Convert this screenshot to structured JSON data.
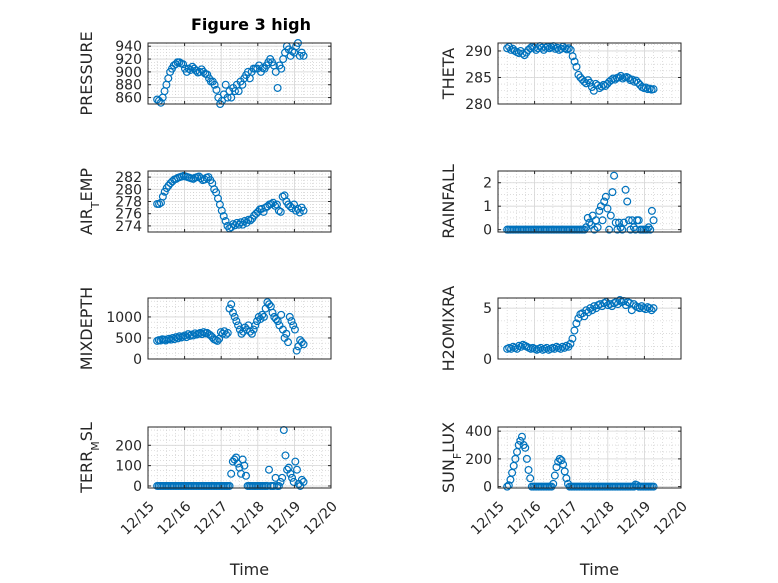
{
  "figure_title": "Figure 3 high",
  "marker_color": "#0072BD",
  "chart_data": [
    {
      "type": "scatter",
      "title": "Figure 3 high",
      "ylabel": "PRESSURE",
      "xlim": [
        "12/15",
        "12/20"
      ],
      "ylim": [
        850,
        945
      ],
      "yticks": [
        860,
        880,
        900,
        920,
        940
      ],
      "x_range": [
        "12/15 06:00",
        "12/19 06:00"
      ],
      "y": [
        857,
        855,
        852,
        860,
        870,
        880,
        890,
        900,
        905,
        910,
        912,
        915,
        915,
        913,
        912,
        905,
        900,
        905,
        903,
        908,
        905,
        902,
        899,
        900,
        904,
        900,
        897,
        896,
        890,
        885,
        885,
        880,
        872,
        860,
        850,
        855,
        865,
        880,
        860,
        870,
        860,
        875,
        870,
        880,
        870,
        885,
        880,
        890,
        895,
        900,
        890,
        900,
        905,
        905,
        905,
        910,
        900,
        906,
        905,
        910,
        915,
        920,
        915,
        910,
        900,
        875,
        910,
        905,
        920,
        930,
        940,
        935,
        925,
        932,
        930,
        940,
        945,
        925,
        930,
        925
      ]
    },
    {
      "type": "scatter",
      "ylabel": "THETA",
      "xlim": [
        "12/15",
        "12/20"
      ],
      "ylim": [
        280,
        291.5
      ],
      "yticks": [
        280,
        285,
        290
      ],
      "x_range": [
        "12/15 06:00",
        "12/19 06:00"
      ],
      "y": [
        290.5,
        290.8,
        290.2,
        290.4,
        290,
        289.8,
        289.6,
        290,
        289.5,
        289.2,
        289.7,
        290.2,
        290.5,
        290.8,
        290.6,
        290.2,
        290.5,
        290.9,
        290.6,
        290.2,
        290.6,
        290.8,
        290.5,
        290.7,
        290.9,
        290.4,
        290.6,
        290.2,
        290.4,
        290.8,
        290.5,
        290.3,
        290.5,
        290.2,
        289,
        288,
        287,
        285.5,
        285,
        284.6,
        284.2,
        283.9,
        284.5,
        284,
        283.2,
        282.5,
        283.8,
        283.5,
        283,
        283.3,
        283.6,
        283.4,
        283.8,
        284.2,
        284.5,
        284.8,
        284.6,
        284.9,
        285,
        285.3,
        284.8,
        285,
        285.1,
        284.9,
        284.5,
        284.6,
        284.2,
        284.4,
        284,
        283.6,
        283.2,
        283,
        283.1,
        282.8,
        282.9,
        282.7,
        282.8
      ]
    },
    {
      "type": "scatter",
      "ylabel": "AIR_TEMP",
      "ylabel_main": "AIR",
      "ylabel_sub": "T",
      "ylabel_rest": "EMP",
      "xlim": [
        "12/15",
        "12/20"
      ],
      "ylim": [
        273,
        283
      ],
      "yticks": [
        274,
        276,
        278,
        280,
        282
      ],
      "x_range": [
        "12/15 06:00",
        "12/19 06:00"
      ],
      "y": [
        277.6,
        277.6,
        277.8,
        278.8,
        279.6,
        280.2,
        280.6,
        281,
        281.3,
        281.6,
        281.7,
        281.9,
        282,
        282.1,
        282.2,
        282.1,
        282,
        281.9,
        281.8,
        281.7,
        281.9,
        282,
        282.1,
        281.8,
        281.5,
        281.6,
        281.9,
        282,
        281.5,
        281,
        280,
        279.5,
        278.5,
        277.5,
        276.5,
        275.6,
        274.8,
        274,
        273.6,
        273.8,
        274.3,
        274.1,
        274.5,
        274.2,
        274.6,
        274.2,
        274.8,
        274.5,
        275,
        274.9,
        275.2,
        275.7,
        276,
        276.3,
        276.7,
        276.8,
        276.3,
        277,
        277.2,
        277.5,
        277.6,
        277.8,
        277.3,
        277.5,
        276.5,
        276.3,
        278.8,
        279,
        278,
        277.5,
        277.2,
        276.9,
        277.5,
        276.5,
        276.8,
        276.2,
        277,
        276.5
      ]
    },
    {
      "type": "scatter",
      "ylabel": "RAINFALL",
      "xlim": [
        "12/15",
        "12/20"
      ],
      "ylim": [
        -0.1,
        2.5
      ],
      "yticks": [
        0,
        1,
        2
      ],
      "x_range": [
        "12/15 06:00",
        "12/19 06:00"
      ],
      "y": [
        0,
        0,
        0,
        0,
        0,
        0,
        0,
        0,
        0,
        0,
        0,
        0,
        0,
        0,
        0,
        0,
        0,
        0,
        0,
        0,
        0,
        0,
        0,
        0,
        0,
        0,
        0,
        0,
        0,
        0,
        0,
        0,
        0,
        0,
        0,
        0,
        0,
        0,
        0,
        0,
        0,
        0,
        0,
        0,
        0,
        0,
        0,
        0,
        0.1,
        0.5,
        0.3,
        0.2,
        0.6,
        0,
        0.4,
        0.1,
        0.8,
        1.0,
        0.4,
        1.2,
        1.4,
        0.9,
        0,
        0.6,
        1.6,
        2.3,
        0.3,
        0,
        0.3,
        0.1,
        0,
        0.3,
        1.7,
        1.2,
        0.4,
        0,
        0.4,
        0.1,
        0,
        0.4,
        0.4,
        0,
        0,
        0,
        0,
        0,
        0.1,
        0,
        0.8,
        0.4
      ]
    },
    {
      "type": "scatter",
      "ylabel": "MIXDEPTH",
      "xlim": [
        "12/15",
        "12/20"
      ],
      "ylim": [
        0,
        1450
      ],
      "yticks": [
        0,
        500,
        1000
      ],
      "x_range": [
        "12/15 06:00",
        "12/19 06:00"
      ],
      "y": [
        430,
        450,
        440,
        470,
        460,
        440,
        470,
        480,
        460,
        500,
        470,
        520,
        490,
        540,
        510,
        530,
        560,
        520,
        590,
        550,
        580,
        560,
        610,
        580,
        600,
        620,
        590,
        640,
        610,
        620,
        590,
        560,
        520,
        470,
        450,
        430,
        480,
        640,
        600,
        660,
        580,
        620,
        1200,
        1300,
        1100,
        1000,
        900,
        800,
        700,
        600,
        650,
        750,
        700,
        800,
        650,
        600,
        700,
        800,
        900,
        1000,
        950,
        1050,
        1000,
        1200,
        1350,
        1300,
        1250,
        1100,
        1000,
        950,
        900,
        800,
        1050,
        700,
        500,
        600,
        400,
        1000,
        900,
        800,
        700,
        200,
        300,
        450,
        400,
        350
      ]
    },
    {
      "type": "scatter",
      "ylabel": "H2OMIXRA",
      "xlim": [
        "12/15",
        "12/20"
      ],
      "ylim": [
        0,
        6
      ],
      "yticks": [
        0,
        5
      ],
      "x_range": [
        "12/15 06:00",
        "12/19 06:00"
      ],
      "y": [
        1.0,
        1.1,
        1.0,
        1.2,
        1.1,
        1.0,
        1.3,
        1.2,
        1.4,
        1.3,
        1.2,
        1.1,
        1.0,
        1.1,
        1.0,
        0.9,
        1.0,
        1.1,
        0.9,
        1.0,
        1.1,
        0.9,
        1.0,
        1.1,
        1.0,
        1.2,
        1.1,
        1.0,
        1.2,
        1.1,
        1.3,
        1.2,
        1.5,
        2.0,
        2.8,
        3.5,
        4.0,
        4.4,
        4.5,
        4.2,
        4.8,
        4.6,
        5.0,
        4.8,
        5.2,
        5.0,
        5.3,
        5.4,
        5.2,
        5.5,
        5.6,
        5.3,
        5.4,
        5.2,
        5.5,
        5.6,
        5.4,
        5.8,
        5.6,
        5.7,
        5.3,
        5.6,
        5.5,
        4.8,
        5.4,
        5.2,
        5.1,
        5.0,
        5.2,
        5.0,
        4.9,
        5.1,
        5.0,
        4.8,
        5.0
      ]
    },
    {
      "type": "scatter",
      "ylabel": "TERR_MSL",
      "ylabel_main": "TERR",
      "ylabel_sub": "M",
      "ylabel_rest": "SL",
      "xlim": [
        "12/15",
        "12/20"
      ],
      "ylim": [
        -10,
        290
      ],
      "yticks": [
        0,
        100,
        200
      ],
      "x_range": [
        "12/15 06:00",
        "12/19 06:00"
      ],
      "y": [
        0,
        0,
        0,
        0,
        0,
        0,
        0,
        0,
        0,
        0,
        0,
        0,
        0,
        0,
        0,
        0,
        0,
        0,
        0,
        0,
        0,
        0,
        0,
        0,
        0,
        0,
        0,
        0,
        0,
        0,
        0,
        0,
        0,
        0,
        0,
        0,
        0,
        0,
        0,
        0,
        0,
        0,
        0,
        0,
        0,
        60,
        120,
        130,
        140,
        110,
        90,
        60,
        130,
        100,
        50,
        0,
        0,
        0,
        0,
        0,
        0,
        0,
        0,
        0,
        0,
        0,
        0,
        0,
        80,
        0,
        0,
        0,
        40,
        0,
        0,
        20,
        40,
        275,
        150,
        80,
        90,
        60,
        40,
        20,
        120,
        80,
        10,
        0,
        30,
        20
      ]
    },
    {
      "type": "scatter",
      "ylabel": "SUN_FLUX",
      "ylabel_main": "SUN",
      "ylabel_sub": "F",
      "ylabel_rest": "LUX",
      "xlim": [
        "12/15",
        "12/20"
      ],
      "ylim": [
        -10,
        430
      ],
      "yticks": [
        0,
        200,
        400
      ],
      "x_range": [
        "12/15 06:00",
        "12/19 06:00"
      ],
      "y": [
        0,
        10,
        50,
        100,
        150,
        200,
        250,
        300,
        330,
        360,
        300,
        280,
        200,
        120,
        60,
        0,
        0,
        0,
        0,
        0,
        0,
        0,
        0,
        0,
        0,
        0,
        0,
        0,
        20,
        80,
        140,
        180,
        200,
        190,
        160,
        110,
        60,
        20,
        0,
        0,
        0,
        0,
        0,
        0,
        0,
        0,
        0,
        0,
        0,
        0,
        0,
        0,
        0,
        0,
        0,
        0,
        0,
        0,
        0,
        0,
        0,
        0,
        0,
        0,
        0,
        0,
        0,
        0,
        0,
        0,
        0,
        0,
        0,
        0,
        0,
        0,
        0,
        0,
        15,
        10,
        0,
        0,
        0,
        0,
        0,
        0,
        0,
        0,
        0,
        0
      ]
    }
  ],
  "xticks": [
    "12/15",
    "12/16",
    "12/17",
    "12/18",
    "12/19",
    "12/20"
  ],
  "xlabel": "Time"
}
